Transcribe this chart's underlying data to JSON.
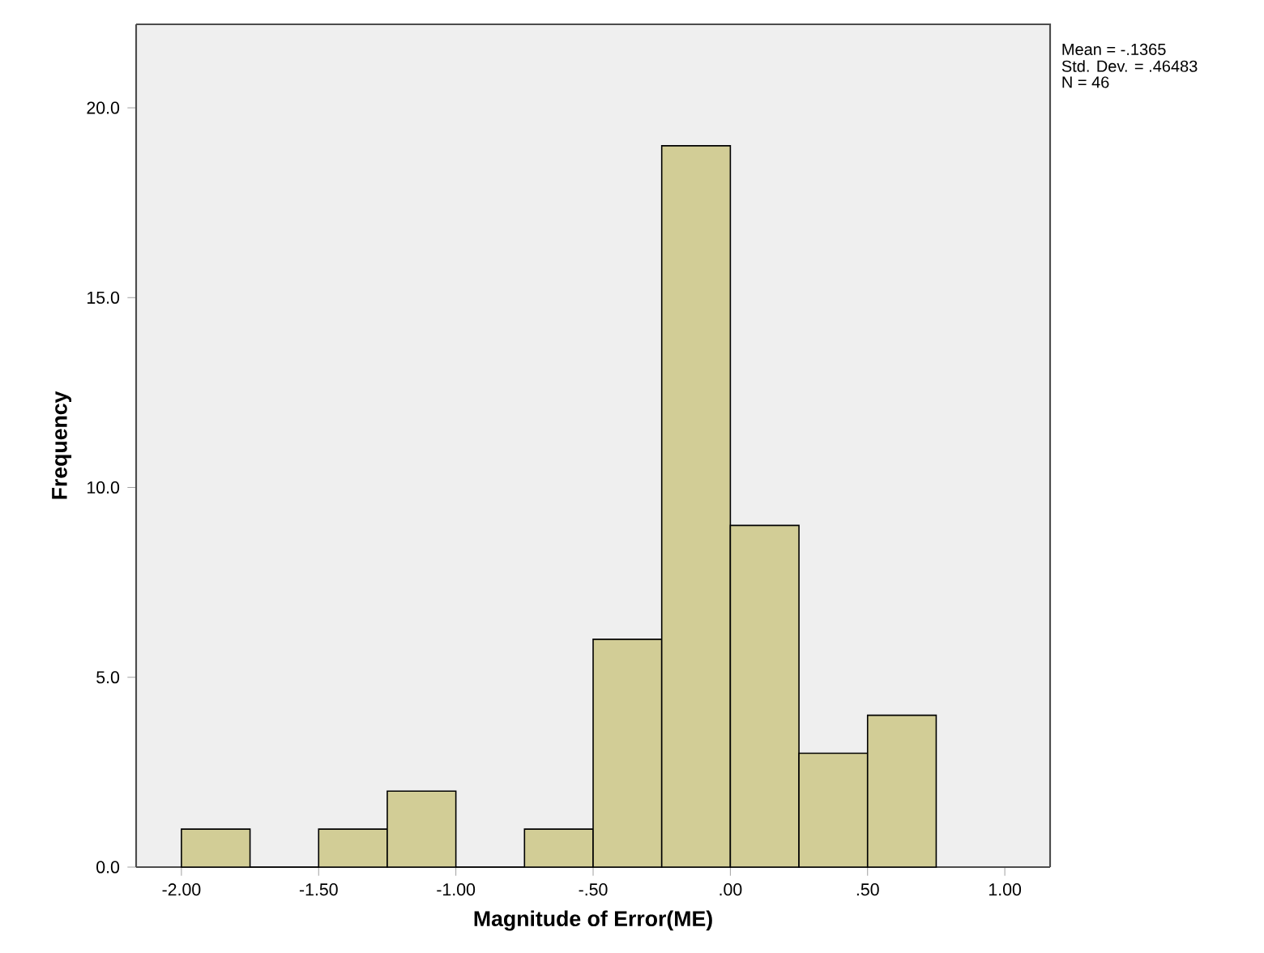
{
  "chart_data": {
    "type": "histogram",
    "xlabel": "Magnitude of Error(ME)",
    "ylabel": "Frequency",
    "bins": [
      -2.0,
      -1.75,
      -1.5,
      -1.25,
      -1.0,
      -0.75,
      -0.5,
      -0.25,
      0.0,
      0.25,
      0.5,
      0.75
    ],
    "values": [
      1,
      0,
      1,
      2,
      0,
      1,
      6,
      19,
      9,
      3,
      4
    ],
    "color": "#d2cd96",
    "xlim": [
      -2.165,
      1.165
    ],
    "ylim": [
      0,
      22.2
    ],
    "xticks": [
      {
        "value": -2.0,
        "label": "-2.00"
      },
      {
        "value": -1.5,
        "label": "-1.50"
      },
      {
        "value": -1.0,
        "label": "-1.00"
      },
      {
        "value": -0.5,
        "label": "-.50"
      },
      {
        "value": 0.0,
        "label": ".00"
      },
      {
        "value": 0.5,
        "label": ".50"
      },
      {
        "value": 1.0,
        "label": "1.00"
      }
    ],
    "yticks": [
      {
        "value": 0,
        "label": "0.0"
      },
      {
        "value": 5,
        "label": "5.0"
      },
      {
        "value": 10,
        "label": "10.0"
      },
      {
        "value": 15,
        "label": "15.0"
      },
      {
        "value": 20,
        "label": "20.0"
      }
    ],
    "grid": false,
    "annotations": [
      "Mean = -.1365",
      "Std. Dev. = .46483",
      "N = 46"
    ]
  }
}
